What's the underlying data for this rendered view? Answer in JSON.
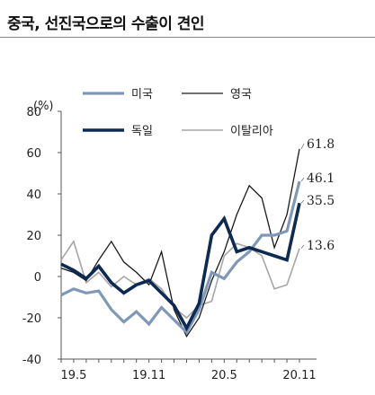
{
  "header": {
    "title": "중국, 선진국으로의 수출이 견인"
  },
  "chart_data": {
    "type": "line",
    "title": "중국, 선진국으로의 수출이 견인",
    "ylabel": "(%)",
    "ylim": [
      -40,
      80
    ],
    "yticks": [
      -40,
      -20,
      0,
      20,
      40,
      60,
      80
    ],
    "x_tick_labels": [
      "19.5",
      "19.11",
      "20.5",
      "20.11"
    ],
    "x": [
      "19.4",
      "19.5",
      "19.6",
      "19.7",
      "19.8",
      "19.9",
      "19.10",
      "19.11",
      "19.12",
      "20.1",
      "20.2",
      "20.3",
      "20.4",
      "20.5",
      "20.6",
      "20.7",
      "20.8",
      "20.9",
      "20.10",
      "20.11"
    ],
    "legend_position": "top",
    "series": [
      {
        "name": "미국",
        "color": "#7f98b8",
        "values": [
          -9,
          -6,
          -8,
          -7,
          -16,
          -22,
          -17,
          -23,
          -15,
          -21,
          -27,
          -16,
          2,
          -1,
          7,
          12,
          20,
          20,
          22,
          46.1
        ],
        "end_label": "46.1"
      },
      {
        "name": "영국",
        "color": "#1a1a1a",
        "values": [
          4,
          2,
          -2,
          8,
          17,
          7,
          2,
          -4,
          12,
          -16,
          -29,
          -20,
          -2,
          12,
          30,
          44,
          38,
          14,
          30,
          61.8
        ],
        "end_label": "61.8"
      },
      {
        "name": "독일",
        "color": "#0d2a52",
        "values": [
          6,
          3,
          -1,
          5,
          -3,
          -8,
          -4,
          -2,
          -8,
          -14,
          -25,
          -13,
          20,
          28,
          12,
          14,
          12,
          10,
          8,
          35.5
        ],
        "end_label": "35.5"
      },
      {
        "name": "이탈리아",
        "color": "#a6a6a6",
        "values": [
          8,
          17,
          -3,
          2,
          -5,
          0,
          -4,
          -1,
          -6,
          -15,
          -20,
          -14,
          -12,
          10,
          16,
          14,
          10,
          -6,
          -4,
          13.6
        ],
        "end_label": "13.6"
      }
    ]
  }
}
